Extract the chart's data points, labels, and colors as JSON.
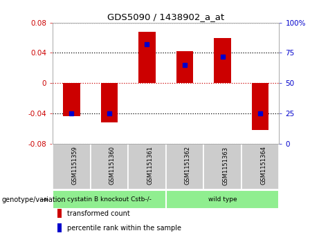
{
  "title": "GDS5090 / 1438902_a_at",
  "samples": [
    "GSM1151359",
    "GSM1151360",
    "GSM1151361",
    "GSM1151362",
    "GSM1151363",
    "GSM1151364"
  ],
  "bar_values": [
    -0.044,
    -0.052,
    0.068,
    0.042,
    0.06,
    -0.062
  ],
  "percentile_values": [
    25,
    25,
    82,
    65,
    72,
    25
  ],
  "ylim": [
    -0.08,
    0.08
  ],
  "yticks_left": [
    -0.08,
    -0.04,
    0,
    0.04,
    0.08
  ],
  "ytick_labels_left": [
    "-0.08",
    "-0.04",
    "0",
    "0.04",
    "0.08"
  ],
  "yticks_right": [
    0,
    25,
    50,
    75,
    100
  ],
  "ytick_labels_right": [
    "0",
    "25",
    "50",
    "75",
    "100%"
  ],
  "bar_color": "#cc0000",
  "percentile_color": "#0000cc",
  "zero_line_color": "#cc0000",
  "grid_color": "#000000",
  "group_label_prefix": "genotype/variation",
  "group1_label": "cystatin B knockout Cstb-/-",
  "group2_label": "wild type",
  "group_color": "#90ee90",
  "legend_items": [
    {
      "color": "#cc0000",
      "label": "transformed count"
    },
    {
      "color": "#0000cc",
      "label": "percentile rank within the sample"
    }
  ],
  "bg_color": "#ffffff",
  "plot_bg": "#ffffff",
  "tick_label_color_left": "#cc0000",
  "tick_label_color_right": "#0000cc",
  "sample_box_color": "#cccccc"
}
